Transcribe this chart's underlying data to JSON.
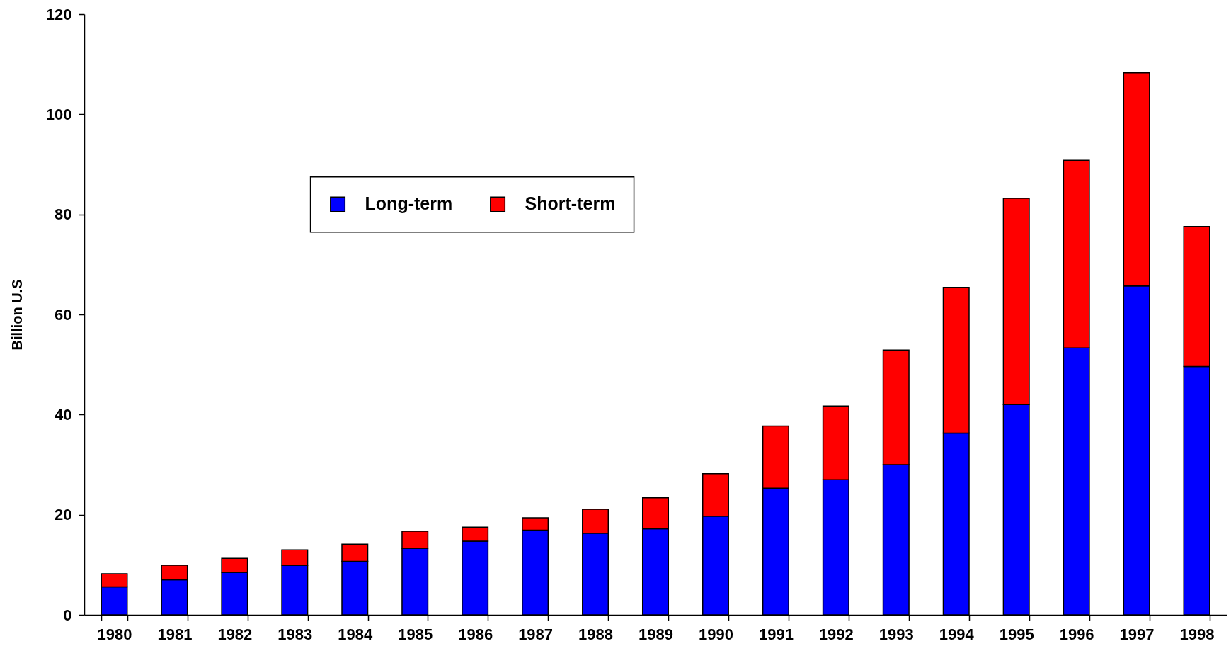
{
  "chart_data": {
    "type": "bar",
    "ylabel": "Billion U.S",
    "categories": [
      "1980",
      "1981",
      "1982",
      "1983",
      "1984",
      "1985",
      "1986",
      "1987",
      "1988",
      "1989",
      "1990",
      "1991",
      "1992",
      "1993",
      "1994",
      "1995",
      "1996",
      "1997",
      "1998"
    ],
    "series": [
      {
        "name": "Long-term",
        "color": "#0000ff",
        "values": [
          5.6,
          7.0,
          8.5,
          9.9,
          10.7,
          13.3,
          14.7,
          16.9,
          16.3,
          17.2,
          19.7,
          25.3,
          27.0,
          30.0,
          36.3,
          42.0,
          53.3,
          65.7,
          49.6
        ]
      },
      {
        "name": "Short-term",
        "color": "#ff0000",
        "values": [
          2.6,
          2.9,
          2.8,
          3.1,
          3.4,
          3.4,
          2.8,
          2.5,
          4.8,
          6.2,
          8.5,
          12.4,
          14.7,
          22.9,
          29.1,
          41.2,
          37.5,
          42.6,
          28.0
        ]
      }
    ],
    "stacked": true,
    "ylim": [
      0,
      120
    ],
    "yticks": [
      0,
      20,
      40,
      60,
      80,
      100,
      120
    ],
    "legend": "top left"
  }
}
